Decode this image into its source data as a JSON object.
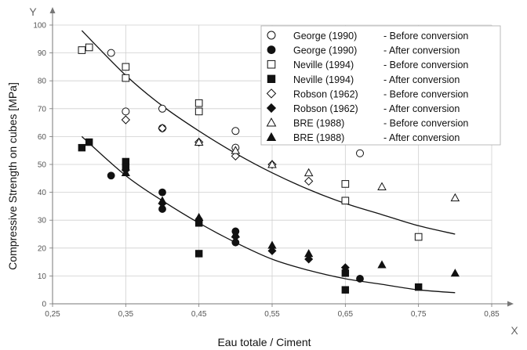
{
  "chart_data": {
    "type": "scatter",
    "xlabel": "Eau totale / Ciment",
    "ylabel": "Compressive Strength on cubes [MPa]",
    "x_axis_letter": "X",
    "y_axis_letter": "Y",
    "xlim": [
      0.25,
      0.85
    ],
    "ylim": [
      0,
      100
    ],
    "x_ticks": [
      "0,25",
      "0,35",
      "0,45",
      "0,55",
      "0,65",
      "0,75",
      "0,85"
    ],
    "y_ticks": [
      "0",
      "10",
      "20",
      "30",
      "40",
      "50",
      "60",
      "70",
      "80",
      "90",
      "100"
    ],
    "grid": true,
    "legend_position": "top-right",
    "series": [
      {
        "name": "George (1990)",
        "note": "- Before conversion",
        "marker": "circle-open",
        "x": [
          0.33,
          0.35,
          0.4,
          0.4,
          0.5,
          0.5,
          0.67
        ],
        "y": [
          90,
          69,
          70,
          63,
          62,
          56,
          54
        ]
      },
      {
        "name": "George (1990)",
        "note": "- After conversion",
        "marker": "circle-filled",
        "x": [
          0.33,
          0.4,
          0.4,
          0.45,
          0.5,
          0.5,
          0.67
        ],
        "y": [
          46,
          40,
          34,
          30,
          26,
          22,
          9
        ]
      },
      {
        "name": "Neville (1994)",
        "note": "- Before conversion",
        "marker": "square-open",
        "x": [
          0.29,
          0.3,
          0.35,
          0.35,
          0.45,
          0.45,
          0.65,
          0.65,
          0.75
        ],
        "y": [
          91,
          92,
          85,
          81,
          72,
          69,
          43,
          37,
          24
        ]
      },
      {
        "name": "Neville (1994)",
        "note": "- After conversion",
        "marker": "square-filled",
        "x": [
          0.29,
          0.3,
          0.35,
          0.35,
          0.45,
          0.45,
          0.65,
          0.65,
          0.75
        ],
        "y": [
          56,
          58,
          51,
          49,
          29,
          18,
          11,
          5,
          6
        ]
      },
      {
        "name": "Robson (1962)",
        "note": "- Before conversion",
        "marker": "diamond-open",
        "x": [
          0.35,
          0.4,
          0.45,
          0.5,
          0.55,
          0.6
        ],
        "y": [
          66,
          63,
          58,
          53,
          50,
          44
        ]
      },
      {
        "name": "Robson (1962)",
        "note": "- After conversion",
        "marker": "diamond-filled",
        "x": [
          0.35,
          0.4,
          0.45,
          0.5,
          0.55,
          0.6,
          0.65
        ],
        "y": [
          48,
          36,
          30,
          24,
          19,
          16,
          13
        ]
      },
      {
        "name": "BRE (1988)",
        "note": "- Before conversion",
        "marker": "triangle-open",
        "x": [
          0.45,
          0.5,
          0.55,
          0.6,
          0.7,
          0.8
        ],
        "y": [
          58,
          55,
          50,
          47,
          42,
          38
        ]
      },
      {
        "name": "BRE (1988)",
        "note": "- After conversion",
        "marker": "triangle-filled",
        "x": [
          0.35,
          0.4,
          0.45,
          0.5,
          0.55,
          0.6,
          0.7,
          0.8
        ],
        "y": [
          47,
          37,
          31,
          25,
          21,
          18,
          14,
          11
        ]
      }
    ],
    "trend_curves": [
      {
        "x": [
          0.29,
          0.35,
          0.4,
          0.45,
          0.5,
          0.55,
          0.6,
          0.65,
          0.7,
          0.75,
          0.8
        ],
        "y": [
          98,
          82,
          71,
          62,
          54,
          47,
          41,
          36,
          32,
          28,
          25
        ]
      },
      {
        "x": [
          0.29,
          0.35,
          0.4,
          0.45,
          0.5,
          0.55,
          0.6,
          0.65,
          0.7,
          0.75,
          0.8
        ],
        "y": [
          60,
          46,
          37,
          29,
          22,
          16,
          12,
          9,
          7,
          5,
          4
        ]
      }
    ]
  }
}
